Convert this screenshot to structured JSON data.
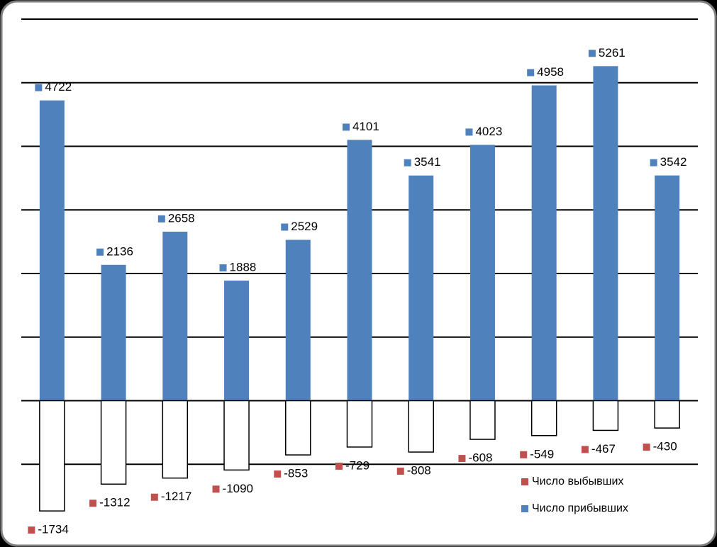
{
  "chart_data": {
    "type": "bar",
    "categories": [
      null,
      null,
      null,
      null,
      null,
      null,
      null,
      null,
      null,
      null,
      null
    ],
    "series": [
      {
        "name": "Число прибывших",
        "color": "#4f81bd",
        "fill": "#4f81bd",
        "values": [
          4722,
          2136,
          2658,
          1888,
          2529,
          4101,
          3541,
          4023,
          4958,
          5261,
          3542
        ]
      },
      {
        "name": "Число выбывших",
        "color": "#c0504d",
        "fill": "#ffffff",
        "values": [
          -1734,
          -1312,
          -1217,
          -1090,
          -853,
          -729,
          -808,
          -608,
          -549,
          -467,
          -430
        ]
      }
    ],
    "ylim": [
      -2000,
      6000
    ],
    "yticks": [
      -1000,
      0,
      1000,
      2000,
      3000,
      4000,
      5000,
      6000
    ],
    "grid": true,
    "legend": "bottom-right"
  }
}
